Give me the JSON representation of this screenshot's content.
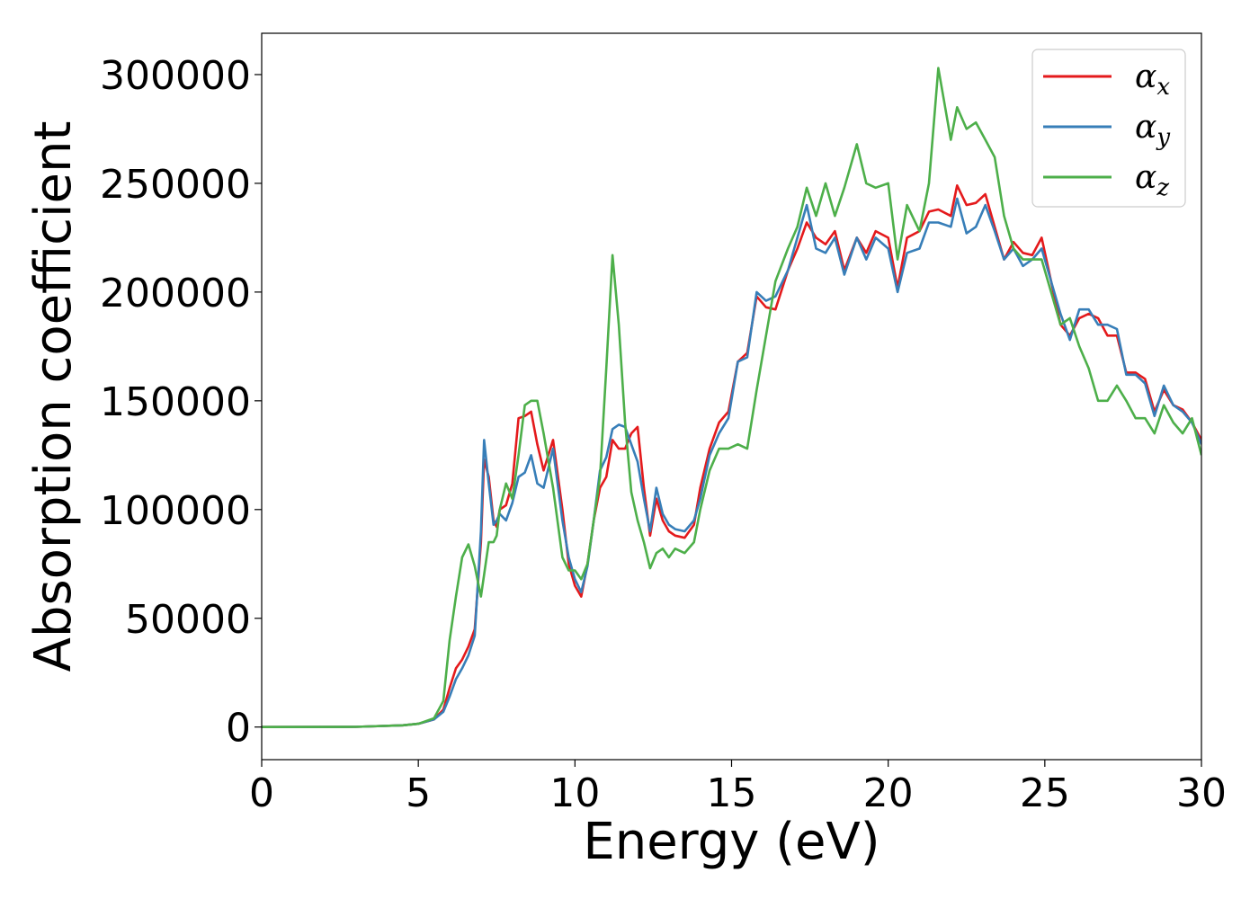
{
  "chart_data": {
    "type": "line",
    "xlabel": "Energy (eV)",
    "ylabel": "Absorption coefficient",
    "xlim": [
      0,
      30
    ],
    "ylim": [
      -15000,
      319000
    ],
    "xticks": [
      0,
      5,
      10,
      15,
      20,
      25,
      30
    ],
    "yticks": [
      0,
      50000,
      100000,
      150000,
      200000,
      250000,
      300000
    ],
    "grid": false,
    "legend_position": "top-right",
    "x": [
      0,
      3,
      4.5,
      5,
      5.5,
      5.8,
      6.0,
      6.2,
      6.4,
      6.6,
      6.8,
      7.0,
      7.1,
      7.25,
      7.4,
      7.5,
      7.6,
      7.8,
      8.0,
      8.2,
      8.4,
      8.6,
      8.8,
      9.0,
      9.3,
      9.6,
      9.8,
      10.0,
      10.2,
      10.4,
      10.6,
      10.8,
      11.0,
      11.2,
      11.4,
      11.6,
      11.8,
      12.0,
      12.2,
      12.4,
      12.6,
      12.8,
      13.0,
      13.2,
      13.5,
      13.8,
      14.0,
      14.3,
      14.6,
      14.9,
      15.2,
      15.5,
      15.8,
      16.1,
      16.4,
      16.8,
      17.1,
      17.4,
      17.7,
      18.0,
      18.3,
      18.6,
      19.0,
      19.3,
      19.6,
      20.0,
      20.3,
      20.6,
      21.0,
      21.3,
      21.6,
      22.0,
      22.2,
      22.5,
      22.8,
      23.1,
      23.4,
      23.7,
      24.0,
      24.3,
      24.6,
      24.9,
      25.2,
      25.5,
      25.8,
      26.1,
      26.4,
      26.7,
      27.0,
      27.3,
      27.6,
      27.9,
      28.2,
      28.5,
      28.8,
      29.1,
      29.4,
      29.7,
      30.0
    ],
    "series": [
      {
        "name": "α_x",
        "label_base": "α",
        "label_sub": "x",
        "color": "#e41a1c",
        "values": [
          0,
          100,
          800,
          1500,
          3500,
          8000,
          18000,
          27000,
          31000,
          37000,
          45000,
          85000,
          123000,
          115000,
          95000,
          92000,
          100000,
          102000,
          112000,
          142000,
          143000,
          145000,
          130000,
          118000,
          132000,
          100000,
          75000,
          65000,
          60000,
          75000,
          95000,
          110000,
          115000,
          132000,
          128000,
          128000,
          135000,
          138000,
          110000,
          88000,
          105000,
          95000,
          90000,
          88000,
          87000,
          93000,
          110000,
          128000,
          140000,
          145000,
          168000,
          172000,
          198000,
          193000,
          192000,
          210000,
          220000,
          232000,
          225000,
          222000,
          228000,
          210000,
          225000,
          218000,
          228000,
          225000,
          202000,
          225000,
          228000,
          237000,
          238000,
          235000,
          249000,
          240000,
          241000,
          245000,
          230000,
          215000,
          223000,
          218000,
          217000,
          225000,
          205000,
          185000,
          180000,
          188000,
          190000,
          188000,
          180000,
          180000,
          163000,
          163000,
          160000,
          145000,
          155000,
          148000,
          146000,
          140000,
          132000
        ]
      },
      {
        "name": "α_y",
        "label_base": "α",
        "label_sub": "y",
        "color": "#377eb8",
        "values": [
          0,
          100,
          800,
          1500,
          3500,
          7000,
          14000,
          22000,
          27000,
          33000,
          42000,
          90000,
          132000,
          112000,
          93000,
          95000,
          98000,
          95000,
          103000,
          115000,
          117000,
          125000,
          112000,
          110000,
          128000,
          95000,
          78000,
          68000,
          62000,
          74000,
          95000,
          118000,
          124000,
          137000,
          139000,
          138000,
          130000,
          122000,
          105000,
          90000,
          110000,
          98000,
          93000,
          91000,
          90000,
          95000,
          105000,
          125000,
          135000,
          142000,
          168000,
          170000,
          200000,
          196000,
          198000,
          210000,
          225000,
          240000,
          220000,
          218000,
          225000,
          208000,
          225000,
          215000,
          225000,
          220000,
          200000,
          218000,
          220000,
          232000,
          232000,
          230000,
          243000,
          227000,
          230000,
          240000,
          228000,
          215000,
          220000,
          212000,
          215000,
          220000,
          205000,
          190000,
          178000,
          192000,
          192000,
          185000,
          185000,
          183000,
          162000,
          162000,
          158000,
          143000,
          157000,
          148000,
          145000,
          140000,
          130000
        ]
      },
      {
        "name": "α_z",
        "label_base": "α",
        "label_sub": "z",
        "color": "#4daf4a",
        "values": [
          0,
          100,
          800,
          1500,
          4000,
          12000,
          40000,
          60000,
          78000,
          84000,
          74000,
          60000,
          70000,
          85000,
          85000,
          88000,
          100000,
          112000,
          105000,
          125000,
          148000,
          150000,
          150000,
          135000,
          110000,
          78000,
          72000,
          72000,
          68000,
          75000,
          95000,
          115000,
          165000,
          217000,
          185000,
          140000,
          108000,
          95000,
          85000,
          73000,
          80000,
          82000,
          78000,
          82000,
          80000,
          85000,
          100000,
          118000,
          128000,
          128000,
          130000,
          128000,
          155000,
          180000,
          205000,
          220000,
          230000,
          248000,
          235000,
          250000,
          235000,
          248000,
          268000,
          250000,
          248000,
          250000,
          215000,
          240000,
          228000,
          250000,
          303000,
          270000,
          285000,
          275000,
          278000,
          270000,
          262000,
          235000,
          220000,
          215000,
          215000,
          215000,
          200000,
          185000,
          188000,
          175000,
          165000,
          150000,
          150000,
          157000,
          150000,
          142000,
          142000,
          135000,
          148000,
          140000,
          135000,
          142000,
          125000
        ]
      }
    ]
  }
}
